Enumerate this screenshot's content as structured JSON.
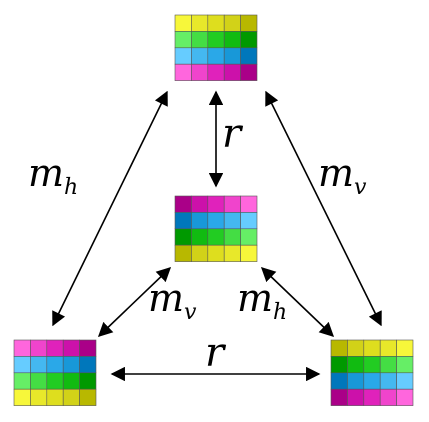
{
  "diagram": {
    "labels": {
      "top_left": {
        "main": "m",
        "sub": "h"
      },
      "top_right": {
        "main": "m",
        "sub": "v"
      },
      "center_vertical": "r",
      "inner_left": {
        "main": "m",
        "sub": "v"
      },
      "inner_right": {
        "main": "m",
        "sub": "h"
      },
      "bottom": "r"
    },
    "grids": {
      "top": [
        [
          "#f7f73a",
          "#e8e82a",
          "#dede1e",
          "#d2d218",
          "#b8b800"
        ],
        [
          "#66ee66",
          "#44dd44",
          "#22cc22",
          "#11bb11",
          "#009900"
        ],
        [
          "#66ccff",
          "#44b8f0",
          "#2aa8e8",
          "#1898d8",
          "#0077bb"
        ],
        [
          "#ff66dd",
          "#f044cc",
          "#e022bb",
          "#cc11aa",
          "#aa0088"
        ]
      ],
      "center": [
        [
          "#aa0088",
          "#cc11aa",
          "#e022bb",
          "#f044cc",
          "#ff66dd"
        ],
        [
          "#0077bb",
          "#1898d8",
          "#2aa8e8",
          "#44b8f0",
          "#66ccff"
        ],
        [
          "#009900",
          "#11bb11",
          "#22cc22",
          "#44dd44",
          "#66ee66"
        ],
        [
          "#b8b800",
          "#d2d218",
          "#dede1e",
          "#e8e82a",
          "#f7f73a"
        ]
      ],
      "bottom_left": [
        [
          "#ff66dd",
          "#f044cc",
          "#e022bb",
          "#cc11aa",
          "#aa0088"
        ],
        [
          "#66ccff",
          "#44b8f0",
          "#2aa8e8",
          "#1898d8",
          "#0077bb"
        ],
        [
          "#66ee66",
          "#44dd44",
          "#22cc22",
          "#11bb11",
          "#009900"
        ],
        [
          "#f7f73a",
          "#e8e82a",
          "#dede1e",
          "#d2d218",
          "#b8b800"
        ]
      ],
      "bottom_right": [
        [
          "#b8b800",
          "#d2d218",
          "#dede1e",
          "#e8e82a",
          "#f7f73a"
        ],
        [
          "#009900",
          "#11bb11",
          "#22cc22",
          "#44dd44",
          "#66ee66"
        ],
        [
          "#0077bb",
          "#1898d8",
          "#2aa8e8",
          "#44b8f0",
          "#66ccff"
        ],
        [
          "#aa0088",
          "#cc11aa",
          "#e022bb",
          "#f044cc",
          "#ff66dd"
        ]
      ]
    }
  }
}
